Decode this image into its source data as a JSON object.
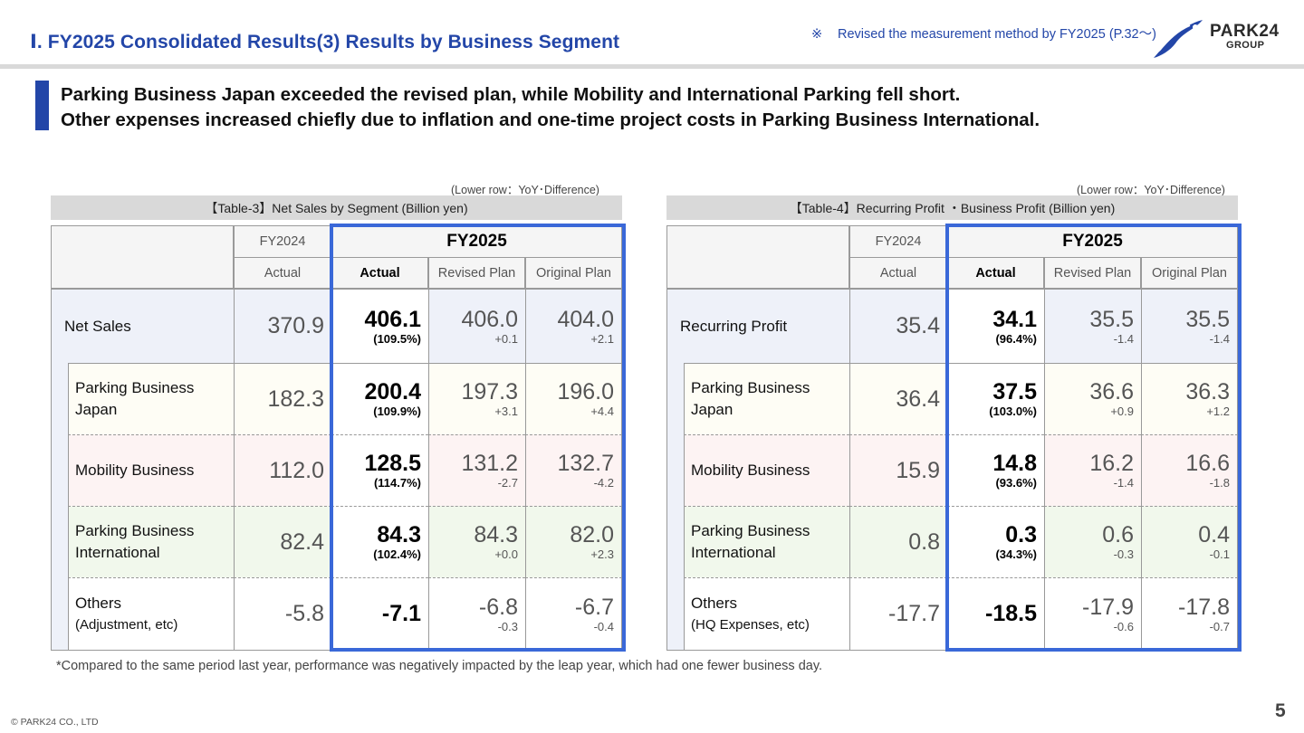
{
  "header": {
    "title": "Ⅰ. FY2025 Consolidated Results(3) Results by Business Segment",
    "note_mark": "※",
    "note_text": "Revised the measurement method by FY2025 (P.32～)",
    "logo_brand": "PARK24",
    "logo_sub": "GROUP"
  },
  "lead": {
    "line1": "Parking Business Japan exceeded the revised plan, while Mobility and International Parking fell short.",
    "line2": "Other expenses increased chiefly due to inflation and one-time project costs in Parking Business International."
  },
  "table3": {
    "lower_note": "(Lower row：YoY･Difference)",
    "title": "【Table-3】Net Sales by Segment (Billion yen)",
    "col_fy2024": "FY2024",
    "col_fy2025": "FY2025",
    "sub_actual_2024": "Actual",
    "sub_actual": "Actual",
    "sub_revised": "Revised Plan",
    "sub_original": "Original Plan",
    "rows": [
      {
        "label": "Net Sales",
        "label2": "",
        "fy2024": "370.9",
        "actual": "406.1",
        "actual_yoy": "(109.5%)",
        "revised": "406.0",
        "revised_diff": "+0.1",
        "original": "404.0",
        "original_diff": "+2.1"
      },
      {
        "label": "Parking Business",
        "label2": "Japan",
        "fy2024": "182.3",
        "actual": "200.4",
        "actual_yoy": "(109.9%)",
        "revised": "197.3",
        "revised_diff": "+3.1",
        "original": "196.0",
        "original_diff": "+4.4"
      },
      {
        "label": "Mobility Business",
        "label2": "",
        "fy2024": "112.0",
        "actual": "128.5",
        "actual_yoy": "(114.7%)",
        "revised": "131.2",
        "revised_diff": "-2.7",
        "original": "132.7",
        "original_diff": "-4.2"
      },
      {
        "label": "Parking Business",
        "label2": "International",
        "fy2024": "82.4",
        "actual": "84.3",
        "actual_yoy": "(102.4%)",
        "revised": "84.3",
        "revised_diff": "+0.0",
        "original": "82.0",
        "original_diff": "+2.3"
      },
      {
        "label": "Others",
        "label2": "(Adjustment, etc)",
        "fy2024": "-5.8",
        "actual": "-7.1",
        "actual_yoy": "",
        "revised": "-6.8",
        "revised_diff": "-0.3",
        "original": "-6.7",
        "original_diff": "-0.4"
      }
    ]
  },
  "table4": {
    "lower_note": "(Lower row：YoY･Difference)",
    "title": "【Table-4】Recurring Profit ・Business Profit (Billion yen)",
    "col_fy2024": "FY2024",
    "col_fy2025": "FY2025",
    "sub_actual_2024": "Actual",
    "sub_actual": "Actual",
    "sub_revised": "Revised Plan",
    "sub_original": "Original Plan",
    "rows": [
      {
        "label": "Recurring Profit",
        "label2": "",
        "fy2024": "35.4",
        "actual": "34.1",
        "actual_yoy": "(96.4%)",
        "revised": "35.5",
        "revised_diff": "-1.4",
        "original": "35.5",
        "original_diff": "-1.4"
      },
      {
        "label": "Parking Business",
        "label2": "Japan",
        "fy2024": "36.4",
        "actual": "37.5",
        "actual_yoy": "(103.0%)",
        "revised": "36.6",
        "revised_diff": "+0.9",
        "original": "36.3",
        "original_diff": "+1.2"
      },
      {
        "label": "Mobility Business",
        "label2": "",
        "fy2024": "15.9",
        "actual": "14.8",
        "actual_yoy": "(93.6%)",
        "revised": "16.2",
        "revised_diff": "-1.4",
        "original": "16.6",
        "original_diff": "-1.8"
      },
      {
        "label": "Parking Business",
        "label2": "International",
        "fy2024": "0.8",
        "actual": "0.3",
        "actual_yoy": "(34.3%)",
        "revised": "0.6",
        "revised_diff": "-0.3",
        "original": "0.4",
        "original_diff": "-0.1"
      },
      {
        "label": "Others",
        "label2": "(HQ Expenses, etc)",
        "fy2024": "-17.7",
        "actual": "-18.5",
        "actual_yoy": "",
        "revised": "-17.9",
        "revised_diff": "-0.6",
        "original": "-17.8",
        "original_diff": "-0.7"
      }
    ]
  },
  "footnote": "*Compared to the same period last year, performance was negatively impacted by the leap year, which had one fewer business day.",
  "copyright": "© PARK24 CO., LTD",
  "page_number": "5"
}
